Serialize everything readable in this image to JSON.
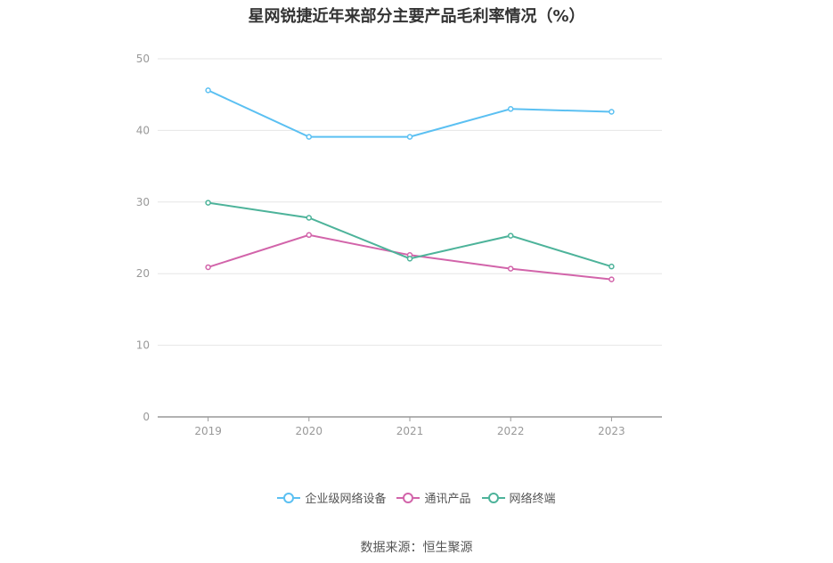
{
  "title": "星网锐捷近年来部分主要产品毛利率情况（%）",
  "source": "数据来源：恒生聚源",
  "chart_data": {
    "type": "line",
    "title": "星网锐捷近年来部分主要产品毛利率情况（%）",
    "x": [
      "2019",
      "2020",
      "2021",
      "2022",
      "2023"
    ],
    "ylim": [
      0,
      50
    ],
    "yticks": [
      0,
      10,
      20,
      30,
      40,
      50
    ],
    "grid": true,
    "legend_position": "bottom",
    "series": [
      {
        "name": "企业级网络设备",
        "color": "#5bc0f2",
        "values": [
          45.6,
          39.1,
          39.1,
          43.0,
          42.6
        ]
      },
      {
        "name": "通讯产品",
        "color": "#d264aa",
        "values": [
          20.9,
          25.4,
          22.6,
          20.7,
          19.2
        ]
      },
      {
        "name": "网络终端",
        "color": "#4db39a",
        "values": [
          29.9,
          27.8,
          22.1,
          25.3,
          21.0
        ]
      }
    ]
  }
}
